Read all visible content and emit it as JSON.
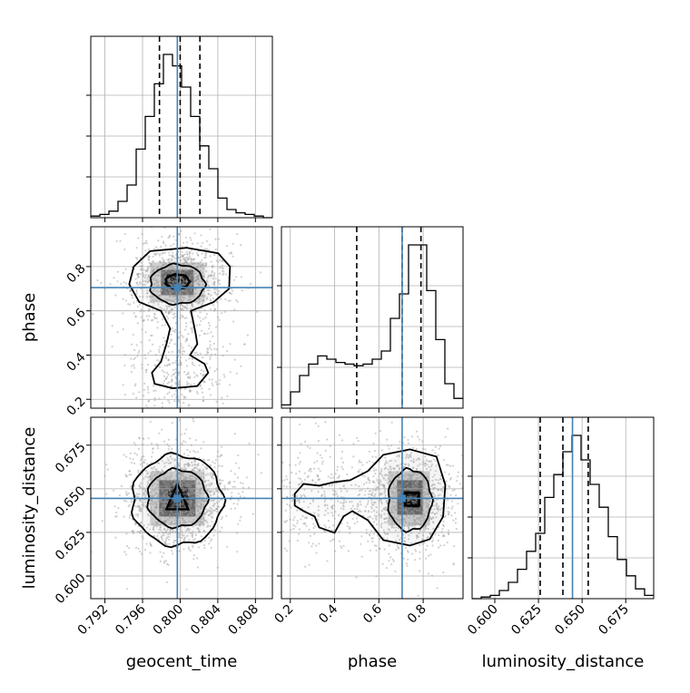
{
  "chart_data": {
    "type": "corner",
    "parameters": [
      "geocent_time",
      "phase",
      "luminosity_distance"
    ],
    "axis_labels": [
      "geocent_time",
      "phase",
      "luminosity_distance"
    ],
    "truths": [
      0.7997,
      0.705,
      0.6445
    ],
    "ranges": {
      "geocent_time": [
        0.7905,
        0.8098
      ],
      "phase": [
        0.16,
        0.98
      ],
      "luminosity_distance": [
        0.587,
        0.691
      ]
    },
    "ticks": {
      "geocent_time": [
        "0.792",
        "0.796",
        "0.800",
        "0.804",
        "0.808"
      ],
      "phase": [
        "0.2",
        "0.4",
        "0.6",
        "0.8"
      ],
      "luminosity_distance": [
        "0.600",
        "0.625",
        "0.650",
        "0.675"
      ]
    },
    "quantiles": {
      "geocent_time": [
        0.7978,
        0.8,
        0.8021
      ],
      "phase": [
        0.5,
        0.705,
        0.79
      ],
      "luminosity_distance": [
        0.626,
        0.639,
        0.6535
      ]
    },
    "histograms": {
      "geocent_time": {
        "edges": [
          0.7905,
          0.8098
        ],
        "counts": [
          0.01,
          0.02,
          0.04,
          0.1,
          0.2,
          0.42,
          0.62,
          0.82,
          1.0,
          0.93,
          0.8,
          0.62,
          0.44,
          0.3,
          0.12,
          0.05,
          0.03,
          0.02,
          0.01,
          0.0
        ]
      },
      "phase": {
        "edges": [
          0.16,
          0.98
        ],
        "counts": [
          0.02,
          0.1,
          0.2,
          0.27,
          0.32,
          0.3,
          0.28,
          0.27,
          0.26,
          0.27,
          0.3,
          0.35,
          0.55,
          0.7,
          1.0,
          1.0,
          0.72,
          0.42,
          0.15,
          0.06
        ]
      },
      "luminosity_distance": {
        "edges": [
          0.587,
          0.691
        ],
        "counts": [
          0.0,
          0.01,
          0.02,
          0.05,
          0.1,
          0.18,
          0.29,
          0.4,
          0.62,
          0.76,
          0.9,
          1.0,
          0.85,
          0.7,
          0.56,
          0.38,
          0.24,
          0.14,
          0.06,
          0.02
        ]
      }
    },
    "joint": {
      "phase_vs_geocent_time": {
        "x": "geocent_time",
        "y": "phase"
      },
      "luminosity_distance_vs_geocent_time": {
        "x": "geocent_time",
        "y": "luminosity_distance"
      },
      "luminosity_distance_vs_phase": {
        "x": "phase",
        "y": "luminosity_distance"
      }
    },
    "colors": {
      "truth": "#4682b4",
      "histogram": "#000000",
      "grid": "#b0b0b0",
      "scatter": "#9a9a9a"
    },
    "grid": true
  }
}
